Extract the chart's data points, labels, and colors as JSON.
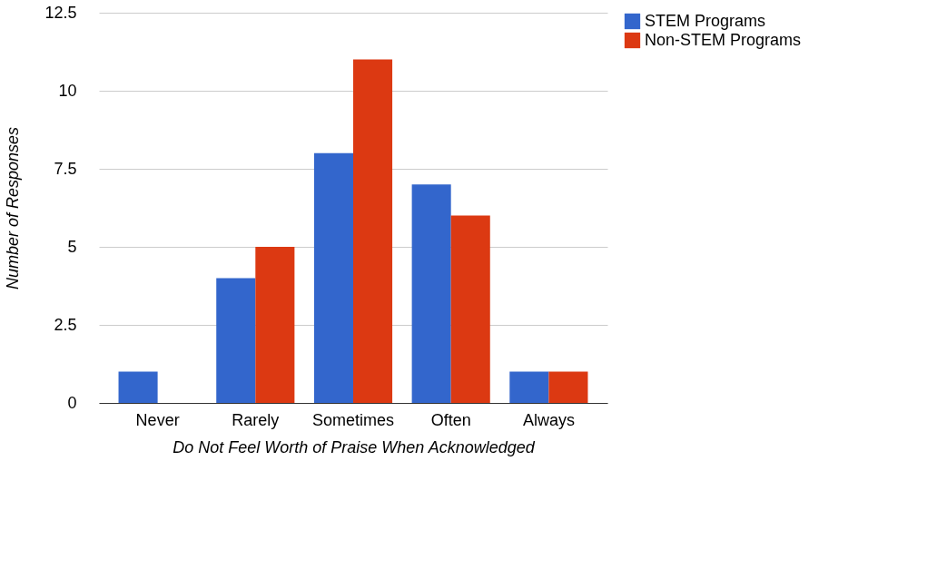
{
  "chart_data": {
    "type": "bar",
    "xlabel": "Do Not Feel Worth of Praise When Acknowledged",
    "ylabel": "Number of Responses",
    "categories": [
      "Never",
      "Rarely",
      "Sometimes",
      "Often",
      "Always"
    ],
    "series": [
      {
        "name": "STEM Programs",
        "color": "#3366cc",
        "values": [
          1,
          4,
          8,
          7,
          1
        ]
      },
      {
        "name": "Non-STEM Programs",
        "color": "#dc3912",
        "values": [
          0,
          5,
          11,
          6,
          1
        ]
      }
    ],
    "ylim": [
      0,
      12.5
    ],
    "yticks": [
      0,
      2.5,
      5,
      7.5,
      10,
      12.5
    ],
    "grid": "y",
    "legend": "right"
  }
}
